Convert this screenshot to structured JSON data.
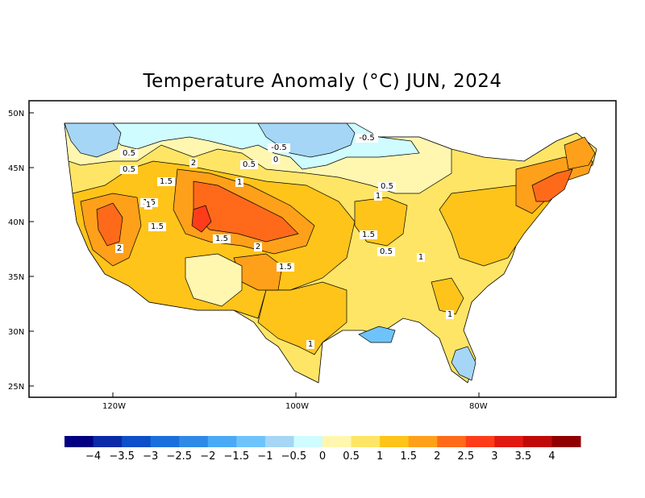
{
  "title": "Temperature Anomaly (°C) JUN, 2024",
  "axes": {
    "lat_ticks": [
      "50N",
      "45N",
      "40N",
      "35N",
      "30N",
      "25N"
    ],
    "lon_ticks": [
      "120W",
      "100W",
      "80W"
    ]
  },
  "colorbar": {
    "colors": [
      "#000080",
      "#0a2aa8",
      "#0d4fc8",
      "#1a6fdc",
      "#2e8ae6",
      "#4aaaf5",
      "#6ec4fa",
      "#a5d6f5",
      "#cffcff",
      "#fff7b0",
      "#ffe566",
      "#ffc41a",
      "#ffa01a",
      "#ff6a1a",
      "#ff3c1a",
      "#e01a12",
      "#c00a0a",
      "#900000"
    ],
    "labels": [
      "−4",
      "−3.5",
      "−3",
      "−2.5",
      "−2",
      "−1.5",
      "−1",
      "−0.5",
      "0",
      "0.5",
      "1",
      "1.5",
      "2",
      "2.5",
      "3",
      "3.5",
      "4"
    ]
  },
  "contour_labels": [
    {
      "text": "0.5"
    },
    {
      "text": "0.5"
    },
    {
      "text": "1.5"
    },
    {
      "text": "1.5"
    },
    {
      "text": "2"
    },
    {
      "text": "0.5"
    },
    {
      "text": "0"
    },
    {
      "text": "-0.5"
    },
    {
      "text": "1"
    },
    {
      "text": "1"
    },
    {
      "text": "-0.5"
    },
    {
      "text": "1"
    },
    {
      "text": "1.5"
    },
    {
      "text": "2"
    },
    {
      "text": "1.5"
    },
    {
      "text": "2"
    },
    {
      "text": "1.5"
    },
    {
      "text": "1.5"
    },
    {
      "text": "0.5"
    },
    {
      "text": "0.5"
    },
    {
      "text": "1"
    },
    {
      "text": "1"
    },
    {
      "text": "1"
    }
  ],
  "colors": {
    "frame": "#000000",
    "ocean": "#ffffff"
  }
}
